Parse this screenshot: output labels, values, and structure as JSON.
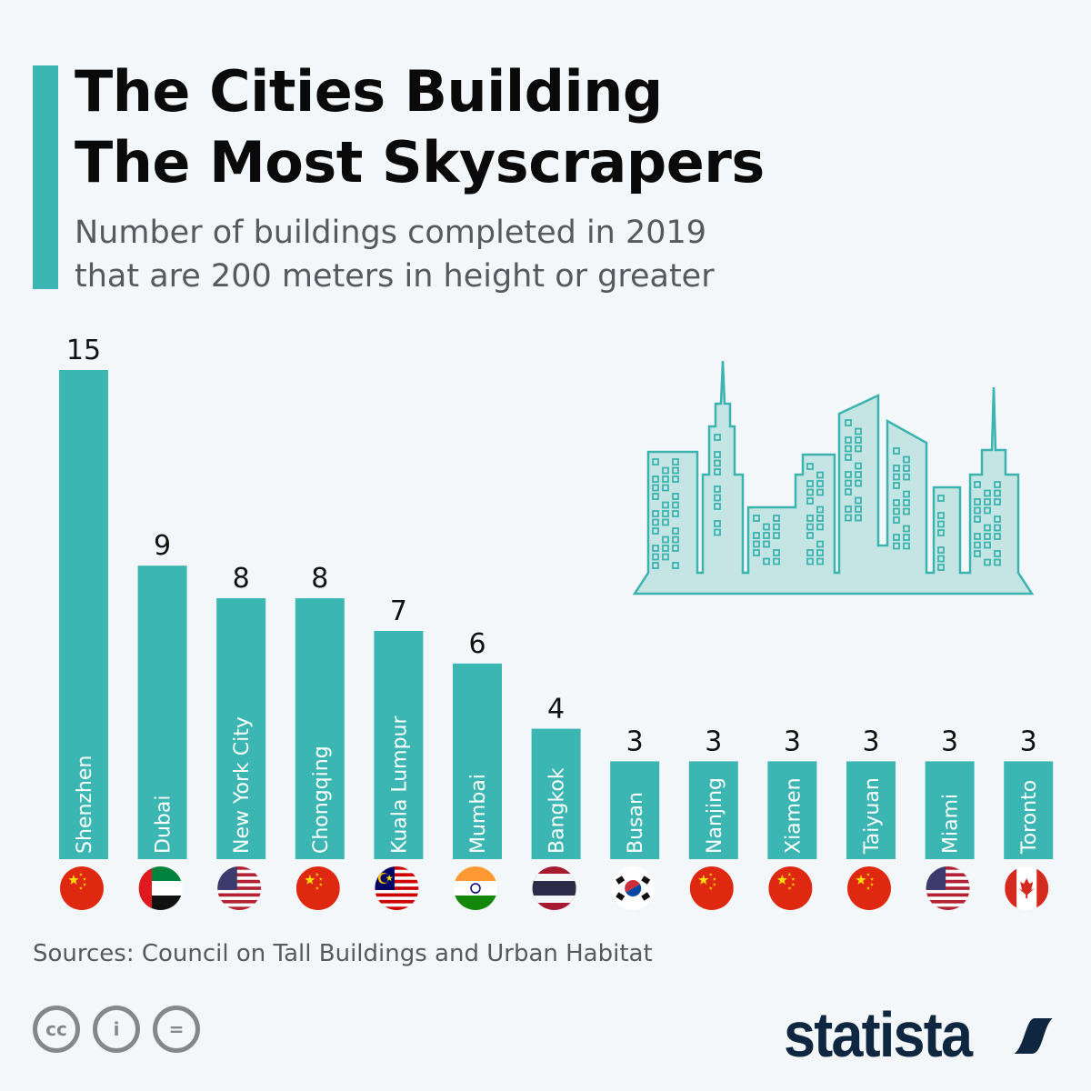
{
  "header": {
    "title_line1": "The Cities Building",
    "title_line2": "The Most Skyscrapers",
    "subtitle_line1": "Number of buildings completed in 2019",
    "subtitle_line2": "that are 200 meters in height or greater"
  },
  "chart_data": {
    "type": "bar",
    "title": "The Cities Building The Most Skyscrapers",
    "xlabel": "",
    "ylabel": "Number of buildings completed in 2019 (200m+)",
    "ylim": [
      0,
      15
    ],
    "categories": [
      "Shenzhen",
      "Dubai",
      "New York City",
      "Chongqing",
      "Kuala Lumpur",
      "Mumbai",
      "Bangkok",
      "Busan",
      "Nanjing",
      "Xiamen",
      "Taiyuan",
      "Miami",
      "Toronto"
    ],
    "values": [
      15,
      9,
      8,
      8,
      7,
      6,
      4,
      3,
      3,
      3,
      3,
      3,
      3
    ],
    "flags": [
      "china",
      "uae",
      "usa",
      "china",
      "malaysia",
      "india",
      "thailand",
      "south-korea",
      "china",
      "china",
      "china",
      "usa",
      "canada"
    ],
    "bar_color": "#3bb6b2"
  },
  "footer": {
    "source": "Sources: Council on Tall Buildings and Urban Habitat",
    "cc": "cc",
    "by": "i",
    "nd": "=",
    "logo": "statista"
  }
}
